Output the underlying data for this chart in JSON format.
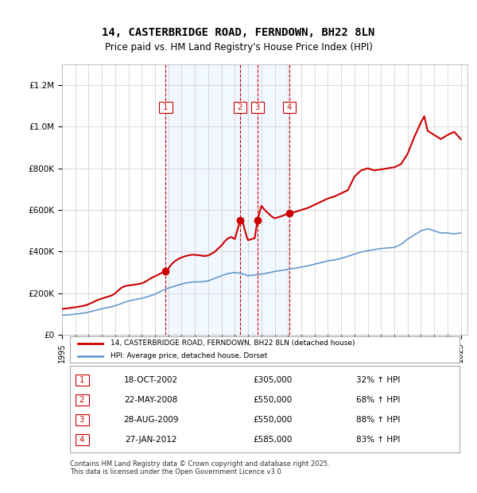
{
  "title1": "14, CASTERBRIDGE ROAD, FERNDOWN, BH22 8LN",
  "title2": "Price paid vs. HM Land Registry's House Price Index (HPI)",
  "red_line_label": "14, CASTERBRIDGE ROAD, FERNDOWN, BH22 8LN (detached house)",
  "blue_line_label": "HPI: Average price, detached house, Dorset",
  "transactions": [
    {
      "num": 1,
      "date": "18-OCT-2002",
      "price": 305000,
      "hpi_pct": "32%",
      "direction": "↑"
    },
    {
      "num": 2,
      "date": "22-MAY-2008",
      "price": 550000,
      "hpi_pct": "68%",
      "direction": "↑"
    },
    {
      "num": 3,
      "date": "28-AUG-2009",
      "price": 550000,
      "hpi_pct": "88%",
      "direction": "↑"
    },
    {
      "num": 4,
      "date": "27-JAN-2012",
      "price": 585000,
      "hpi_pct": "83%",
      "direction": "↑"
    }
  ],
  "transaction_years": [
    2002.8,
    2008.4,
    2009.7,
    2012.1
  ],
  "footer": "Contains HM Land Registry data © Crown copyright and database right 2025.\nThis data is licensed under the Open Government Licence v3.0.",
  "ylim": [
    0,
    1300000
  ],
  "xlim_start": 1995,
  "xlim_end": 2025.5,
  "red_color": "#cc0000",
  "blue_color": "#6699cc",
  "shade_color": "#ddeeff",
  "grid_color": "#cccccc",
  "red_data": {
    "years": [
      1995.0,
      1995.25,
      1995.5,
      1995.75,
      1996.0,
      1996.25,
      1996.5,
      1996.75,
      1997.0,
      1997.25,
      1997.5,
      1997.75,
      1998.0,
      1998.25,
      1998.5,
      1998.75,
      1999.0,
      1999.25,
      1999.5,
      1999.75,
      2000.0,
      2000.25,
      2000.5,
      2000.75,
      2001.0,
      2001.25,
      2001.5,
      2001.75,
      2002.0,
      2002.25,
      2002.5,
      2002.8,
      2003.0,
      2003.25,
      2003.5,
      2003.75,
      2004.0,
      2004.25,
      2004.5,
      2004.75,
      2005.0,
      2005.25,
      2005.5,
      2005.75,
      2006.0,
      2006.25,
      2006.5,
      2006.75,
      2007.0,
      2007.25,
      2007.5,
      2007.75,
      2008.0,
      2008.4,
      2008.6,
      2008.9,
      2009.0,
      2009.5,
      2009.7,
      2010.0,
      2010.25,
      2010.5,
      2010.75,
      2011.0,
      2011.5,
      2012.1,
      2012.5,
      2013.0,
      2013.5,
      2014.0,
      2014.5,
      2015.0,
      2015.5,
      2016.0,
      2016.5,
      2017.0,
      2017.5,
      2018.0,
      2018.5,
      2019.0,
      2019.5,
      2020.0,
      2020.5,
      2021.0,
      2021.5,
      2022.0,
      2022.25,
      2022.5,
      2023.0,
      2023.5,
      2024.0,
      2024.5,
      2025.0
    ],
    "values": [
      125000,
      127000,
      129000,
      131000,
      133000,
      136000,
      139000,
      142000,
      148000,
      155000,
      163000,
      170000,
      175000,
      180000,
      185000,
      190000,
      200000,
      215000,
      228000,
      235000,
      238000,
      240000,
      242000,
      245000,
      248000,
      255000,
      265000,
      275000,
      282000,
      290000,
      298000,
      305000,
      320000,
      340000,
      355000,
      365000,
      372000,
      378000,
      382000,
      385000,
      385000,
      383000,
      381000,
      379000,
      382000,
      390000,
      400000,
      415000,
      430000,
      450000,
      465000,
      470000,
      460000,
      550000,
      540000,
      470000,
      455000,
      465000,
      550000,
      620000,
      600000,
      585000,
      570000,
      560000,
      570000,
      585000,
      590000,
      600000,
      610000,
      625000,
      640000,
      655000,
      665000,
      680000,
      695000,
      760000,
      790000,
      800000,
      790000,
      795000,
      800000,
      805000,
      820000,
      870000,
      950000,
      1020000,
      1050000,
      980000,
      960000,
      940000,
      960000,
      975000,
      940000
    ]
  },
  "blue_data": {
    "years": [
      1995.0,
      1995.5,
      1996.0,
      1996.5,
      1997.0,
      1997.5,
      1998.0,
      1998.5,
      1999.0,
      1999.5,
      2000.0,
      2000.5,
      2001.0,
      2001.5,
      2002.0,
      2002.5,
      2003.0,
      2003.5,
      2004.0,
      2004.5,
      2005.0,
      2005.5,
      2006.0,
      2006.5,
      2007.0,
      2007.5,
      2008.0,
      2008.5,
      2009.0,
      2009.5,
      2010.0,
      2010.5,
      2011.0,
      2011.5,
      2012.0,
      2012.5,
      2013.0,
      2013.5,
      2014.0,
      2014.5,
      2015.0,
      2015.5,
      2016.0,
      2016.5,
      2017.0,
      2017.5,
      2018.0,
      2018.5,
      2019.0,
      2019.5,
      2020.0,
      2020.5,
      2021.0,
      2021.5,
      2022.0,
      2022.5,
      2023.0,
      2023.5,
      2024.0,
      2024.5,
      2025.0
    ],
    "values": [
      95000,
      97000,
      100000,
      104000,
      110000,
      118000,
      126000,
      133000,
      140000,
      152000,
      163000,
      170000,
      176000,
      185000,
      196000,
      212000,
      225000,
      235000,
      245000,
      252000,
      255000,
      255000,
      260000,
      272000,
      285000,
      295000,
      300000,
      295000,
      285000,
      288000,
      292000,
      298000,
      305000,
      310000,
      315000,
      320000,
      326000,
      332000,
      340000,
      348000,
      356000,
      360000,
      368000,
      378000,
      388000,
      398000,
      405000,
      410000,
      415000,
      418000,
      420000,
      435000,
      460000,
      480000,
      500000,
      510000,
      500000,
      490000,
      490000,
      485000,
      490000
    ]
  }
}
